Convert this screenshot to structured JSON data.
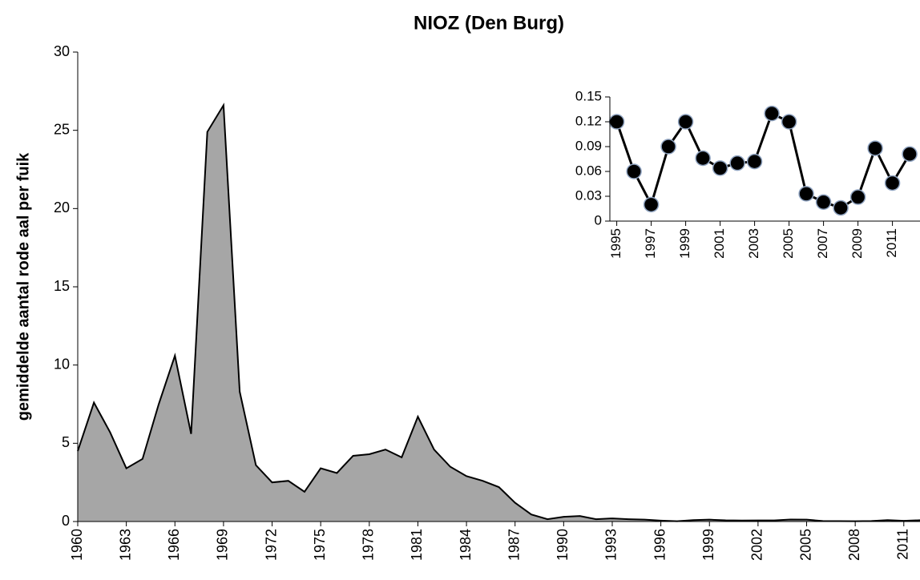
{
  "chart_data": [
    {
      "type": "area",
      "title": "NIOZ (Den Burg)",
      "y_label": "gemiddelde  aantal rode aal per fuik",
      "x": [
        1960,
        1961,
        1962,
        1963,
        1964,
        1965,
        1966,
        1967,
        1968,
        1969,
        1970,
        1971,
        1972,
        1973,
        1974,
        1975,
        1976,
        1977,
        1978,
        1979,
        1980,
        1981,
        1982,
        1983,
        1984,
        1985,
        1986,
        1987,
        1988,
        1989,
        1990,
        1991,
        1992,
        1993,
        1994,
        1995,
        1996,
        1997,
        1998,
        1999,
        2000,
        2001,
        2002,
        2003,
        2004,
        2005,
        2006,
        2007,
        2008,
        2009,
        2010,
        2011,
        2012
      ],
      "values": [
        4.5,
        7.6,
        5.7,
        3.4,
        4.0,
        7.5,
        10.6,
        5.6,
        24.9,
        26.6,
        8.3,
        3.6,
        2.5,
        2.6,
        1.9,
        3.4,
        3.1,
        4.2,
        4.3,
        4.6,
        4.1,
        6.7,
        4.6,
        3.5,
        2.9,
        2.6,
        2.2,
        1.2,
        0.45,
        0.15,
        0.3,
        0.35,
        0.15,
        0.2,
        0.15,
        0.12,
        0.06,
        0.02,
        0.09,
        0.12,
        0.076,
        0.064,
        0.07,
        0.072,
        0.13,
        0.12,
        0.033,
        0.023,
        0.016,
        0.029,
        0.088,
        0.046,
        0.081
      ],
      "color": "#a6a6a6",
      "line_color": "#000000",
      "xlim": [
        1960,
        2012
      ],
      "xticks": [
        1960,
        1963,
        1966,
        1969,
        1972,
        1975,
        1978,
        1981,
        1984,
        1987,
        1990,
        1993,
        1996,
        1999,
        2002,
        2005,
        2008,
        2011
      ],
      "ylim": [
        0,
        30
      ],
      "yticks": [
        0,
        5,
        10,
        15,
        20,
        25,
        30
      ]
    },
    {
      "type": "line",
      "x": [
        1995,
        1996,
        1997,
        1998,
        1999,
        2000,
        2001,
        2002,
        2003,
        2004,
        2005,
        2006,
        2007,
        2008,
        2009,
        2010,
        2011,
        2012
      ],
      "values": [
        0.12,
        0.06,
        0.02,
        0.09,
        0.12,
        0.076,
        0.064,
        0.07,
        0.072,
        0.13,
        0.12,
        0.033,
        0.023,
        0.016,
        0.029,
        0.088,
        0.046,
        0.081
      ],
      "color": "#000000",
      "marker_edge": "#8fa3c0",
      "xlim": [
        1994.6,
        2012.6
      ],
      "xticks": [
        1995,
        1997,
        1999,
        2001,
        2003,
        2005,
        2007,
        2009,
        2011
      ],
      "ylim": [
        0,
        0.15
      ],
      "yticks": [
        0,
        0.03,
        0.06,
        0.09,
        0.12,
        0.15
      ]
    }
  ]
}
